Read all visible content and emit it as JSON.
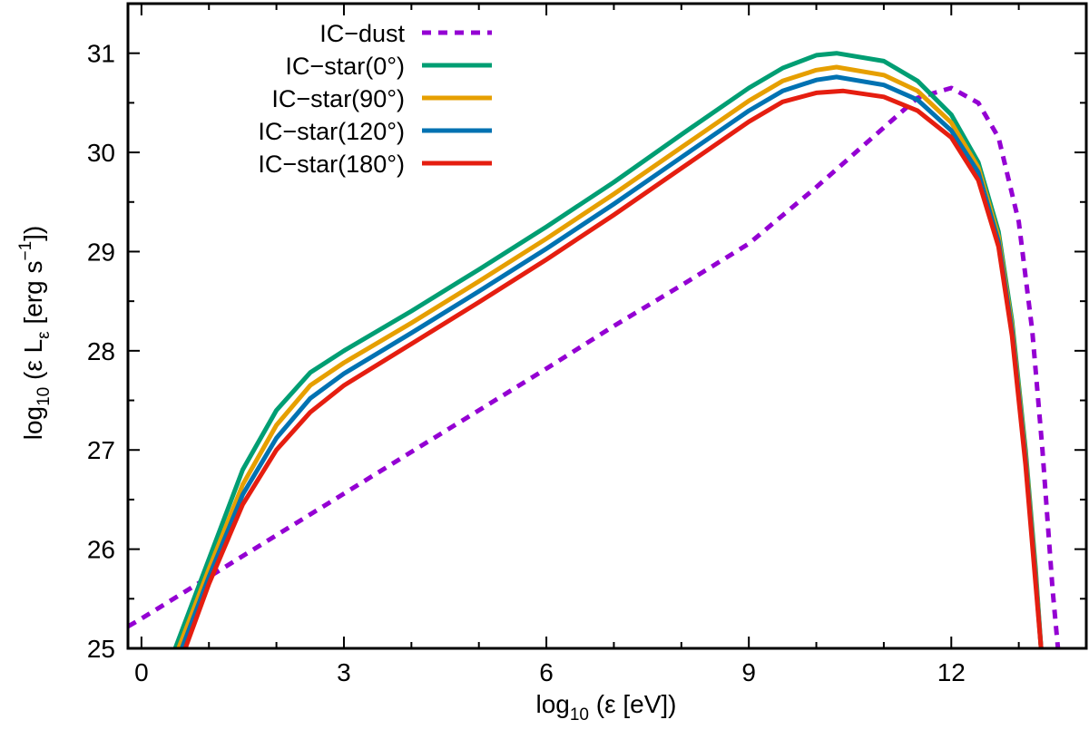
{
  "chart_data": {
    "type": "line",
    "xlabel": {
      "base": "log",
      "sub": "10",
      "rest": " (ε [eV])"
    },
    "ylabel": {
      "base": "log",
      "sub": "10",
      "mid": " (ε L",
      "sub2": "ε",
      "mid2": " [erg s",
      "sup": "−1",
      "end": "])"
    },
    "xlim": [
      -0.2,
      14.0
    ],
    "ylim": [
      25,
      31.5
    ],
    "xticks": [
      0,
      3,
      6,
      9,
      12
    ],
    "yticks": [
      25,
      26,
      27,
      28,
      29,
      30,
      31
    ],
    "xtick_labels": [
      "0",
      "3",
      "6",
      "9",
      "12"
    ],
    "ytick_labels": [
      "25",
      "26",
      "27",
      "28",
      "29",
      "30",
      "31"
    ],
    "grid": false,
    "legend_position": "top-left",
    "series": [
      {
        "name": "IC−dust",
        "color": "#9400d3",
        "dashed": true,
        "points": [
          [
            -0.2,
            25.22
          ],
          [
            0,
            25.3
          ],
          [
            1,
            25.72
          ],
          [
            2,
            26.14
          ],
          [
            3,
            26.56
          ],
          [
            4,
            26.98
          ],
          [
            5,
            27.4
          ],
          [
            6,
            27.82
          ],
          [
            7,
            28.25
          ],
          [
            8,
            28.66
          ],
          [
            9,
            29.08
          ],
          [
            10,
            29.65
          ],
          [
            11,
            30.25
          ],
          [
            11.5,
            30.55
          ],
          [
            12,
            30.65
          ],
          [
            12.4,
            30.5
          ],
          [
            12.7,
            30.15
          ],
          [
            13,
            29.3
          ],
          [
            13.2,
            28.2
          ],
          [
            13.35,
            27.0
          ],
          [
            13.5,
            25.6
          ],
          [
            13.58,
            25.0
          ]
        ]
      },
      {
        "name": "IC−star(0°)",
        "color": "#009e73",
        "dashed": false,
        "points": [
          [
            0.5,
            25.0
          ],
          [
            1,
            25.9
          ],
          [
            1.5,
            26.8
          ],
          [
            2,
            27.4
          ],
          [
            2.5,
            27.78
          ],
          [
            3,
            28.0
          ],
          [
            4,
            28.4
          ],
          [
            5,
            28.82
          ],
          [
            6,
            29.25
          ],
          [
            7,
            29.7
          ],
          [
            8,
            30.18
          ],
          [
            9,
            30.65
          ],
          [
            9.5,
            30.85
          ],
          [
            10,
            30.98
          ],
          [
            10.3,
            31.0
          ],
          [
            11,
            30.92
          ],
          [
            11.5,
            30.72
          ],
          [
            12,
            30.38
          ],
          [
            12.4,
            29.9
          ],
          [
            12.7,
            29.2
          ],
          [
            12.9,
            28.3
          ],
          [
            13.1,
            27.0
          ],
          [
            13.25,
            25.8
          ],
          [
            13.33,
            25.0
          ]
        ]
      },
      {
        "name": "IC−star(90°)",
        "color": "#e69f00",
        "dashed": false,
        "points": [
          [
            0.55,
            25.0
          ],
          [
            1,
            25.8
          ],
          [
            1.5,
            26.65
          ],
          [
            2,
            27.25
          ],
          [
            2.5,
            27.65
          ],
          [
            3,
            27.88
          ],
          [
            4,
            28.28
          ],
          [
            5,
            28.7
          ],
          [
            6,
            29.13
          ],
          [
            7,
            29.58
          ],
          [
            8,
            30.05
          ],
          [
            9,
            30.52
          ],
          [
            9.5,
            30.72
          ],
          [
            10,
            30.83
          ],
          [
            10.3,
            30.86
          ],
          [
            11,
            30.78
          ],
          [
            11.5,
            30.62
          ],
          [
            12,
            30.3
          ],
          [
            12.4,
            29.85
          ],
          [
            12.7,
            29.15
          ],
          [
            12.9,
            28.25
          ],
          [
            13.1,
            26.95
          ],
          [
            13.25,
            25.75
          ],
          [
            13.33,
            25.0
          ]
        ]
      },
      {
        "name": "IC−star(120°)",
        "color": "#0072b2",
        "dashed": false,
        "points": [
          [
            0.6,
            25.0
          ],
          [
            1,
            25.72
          ],
          [
            1.5,
            26.55
          ],
          [
            2,
            27.12
          ],
          [
            2.5,
            27.52
          ],
          [
            3,
            27.77
          ],
          [
            4,
            28.18
          ],
          [
            5,
            28.6
          ],
          [
            6,
            29.03
          ],
          [
            7,
            29.48
          ],
          [
            8,
            29.95
          ],
          [
            9,
            30.42
          ],
          [
            9.5,
            30.62
          ],
          [
            10,
            30.73
          ],
          [
            10.3,
            30.76
          ],
          [
            11,
            30.68
          ],
          [
            11.5,
            30.53
          ],
          [
            12,
            30.22
          ],
          [
            12.4,
            29.8
          ],
          [
            12.7,
            29.1
          ],
          [
            12.9,
            28.2
          ],
          [
            13.1,
            26.9
          ],
          [
            13.25,
            25.7
          ],
          [
            13.33,
            25.0
          ]
        ]
      },
      {
        "name": "IC−star(180°)",
        "color": "#e51e10",
        "dashed": false,
        "points": [
          [
            0.65,
            25.0
          ],
          [
            1,
            25.65
          ],
          [
            1.5,
            26.45
          ],
          [
            2,
            27.0
          ],
          [
            2.5,
            27.38
          ],
          [
            3,
            27.65
          ],
          [
            4,
            28.07
          ],
          [
            5,
            28.49
          ],
          [
            6,
            28.92
          ],
          [
            7,
            29.37
          ],
          [
            8,
            29.84
          ],
          [
            9,
            30.31
          ],
          [
            9.5,
            30.51
          ],
          [
            10,
            30.6
          ],
          [
            10.4,
            30.62
          ],
          [
            11,
            30.56
          ],
          [
            11.5,
            30.42
          ],
          [
            12,
            30.15
          ],
          [
            12.4,
            29.72
          ],
          [
            12.7,
            29.05
          ],
          [
            12.9,
            28.15
          ],
          [
            13.1,
            26.85
          ],
          [
            13.25,
            25.65
          ],
          [
            13.33,
            25.0
          ]
        ]
      }
    ]
  }
}
